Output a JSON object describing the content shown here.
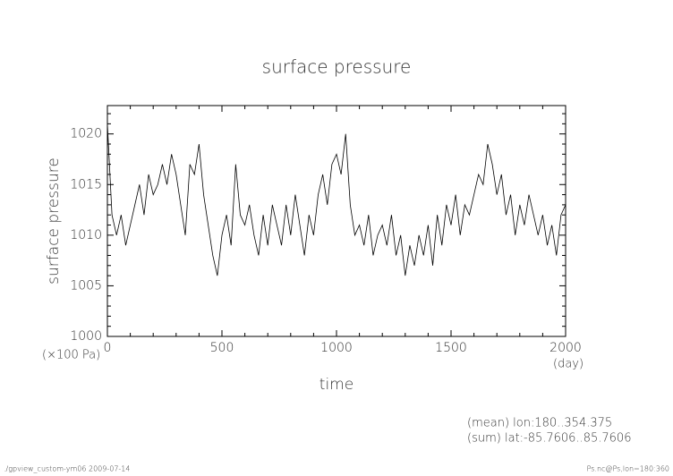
{
  "chart_data": {
    "type": "line",
    "title": "surface pressure",
    "y_label": "surface pressure",
    "x_label": "time",
    "y_unit": "(×100 Pa)",
    "x_unit": "(day)",
    "notes": [
      "(mean) lon:180..354.375",
      "(sum) lat:-85.7606..85.7606"
    ],
    "footer_left": "./gpview_custom-ym06  2009-07-14",
    "footer_right": "Ps.nc@Ps,lon=180:360",
    "color": "#000000",
    "xlim": [
      0,
      2000
    ],
    "ylim": [
      1000,
      1022.8
    ],
    "xticks": [
      0,
      500,
      1000,
      1500,
      2000
    ],
    "yticks": [
      1000,
      1005,
      1010,
      1015,
      1020
    ],
    "xminorticks": [
      100,
      200,
      300,
      400,
      600,
      700,
      800,
      900,
      1100,
      1200,
      1300,
      1400,
      1600,
      1700,
      1800,
      1900
    ],
    "yminorticks": [
      1001,
      1002,
      1003,
      1004,
      1006,
      1007,
      1008,
      1009,
      1011,
      1012,
      1013,
      1014,
      1016,
      1017,
      1018,
      1019,
      1021,
      1022
    ],
    "x": [
      0,
      20,
      40,
      60,
      80,
      100,
      120,
      140,
      160,
      180,
      200,
      220,
      240,
      260,
      280,
      300,
      320,
      340,
      360,
      380,
      400,
      420,
      440,
      460,
      480,
      500,
      520,
      540,
      560,
      580,
      600,
      620,
      640,
      660,
      680,
      700,
      720,
      740,
      760,
      780,
      800,
      820,
      840,
      860,
      880,
      900,
      920,
      940,
      960,
      980,
      1000,
      1020,
      1040,
      1060,
      1080,
      1100,
      1120,
      1140,
      1160,
      1180,
      1200,
      1220,
      1240,
      1260,
      1280,
      1300,
      1320,
      1340,
      1360,
      1380,
      1400,
      1420,
      1440,
      1460,
      1480,
      1500,
      1520,
      1540,
      1560,
      1580,
      1600,
      1620,
      1640,
      1660,
      1680,
      1700,
      1720,
      1740,
      1760,
      1780,
      1800,
      1820,
      1840,
      1860,
      1880,
      1900,
      1920,
      1940,
      1960,
      1980,
      2000
    ],
    "values": [
      1021,
      1012,
      1010,
      1012,
      1009,
      1011,
      1013,
      1015,
      1012,
      1016,
      1014,
      1015,
      1017,
      1015,
      1018,
      1016,
      1013,
      1010,
      1017,
      1016,
      1019,
      1014,
      1011,
      1008,
      1006,
      1010,
      1012,
      1009,
      1017,
      1012,
      1011,
      1013,
      1010,
      1008,
      1012,
      1009,
      1013,
      1011,
      1009,
      1013,
      1010,
      1014,
      1011,
      1008,
      1012,
      1010,
      1014,
      1016,
      1013,
      1017,
      1018,
      1016,
      1020,
      1013,
      1010,
      1011,
      1009,
      1012,
      1008,
      1010,
      1011,
      1009,
      1012,
      1008,
      1010,
      1006,
      1009,
      1007,
      1010,
      1008,
      1011,
      1007,
      1012,
      1009,
      1013,
      1011,
      1014,
      1010,
      1013,
      1012,
      1014,
      1016,
      1015,
      1019,
      1017,
      1014,
      1016,
      1012,
      1014,
      1010,
      1013,
      1011,
      1014,
      1012,
      1010,
      1012,
      1009,
      1011,
      1008,
      1012,
      1013
    ]
  }
}
